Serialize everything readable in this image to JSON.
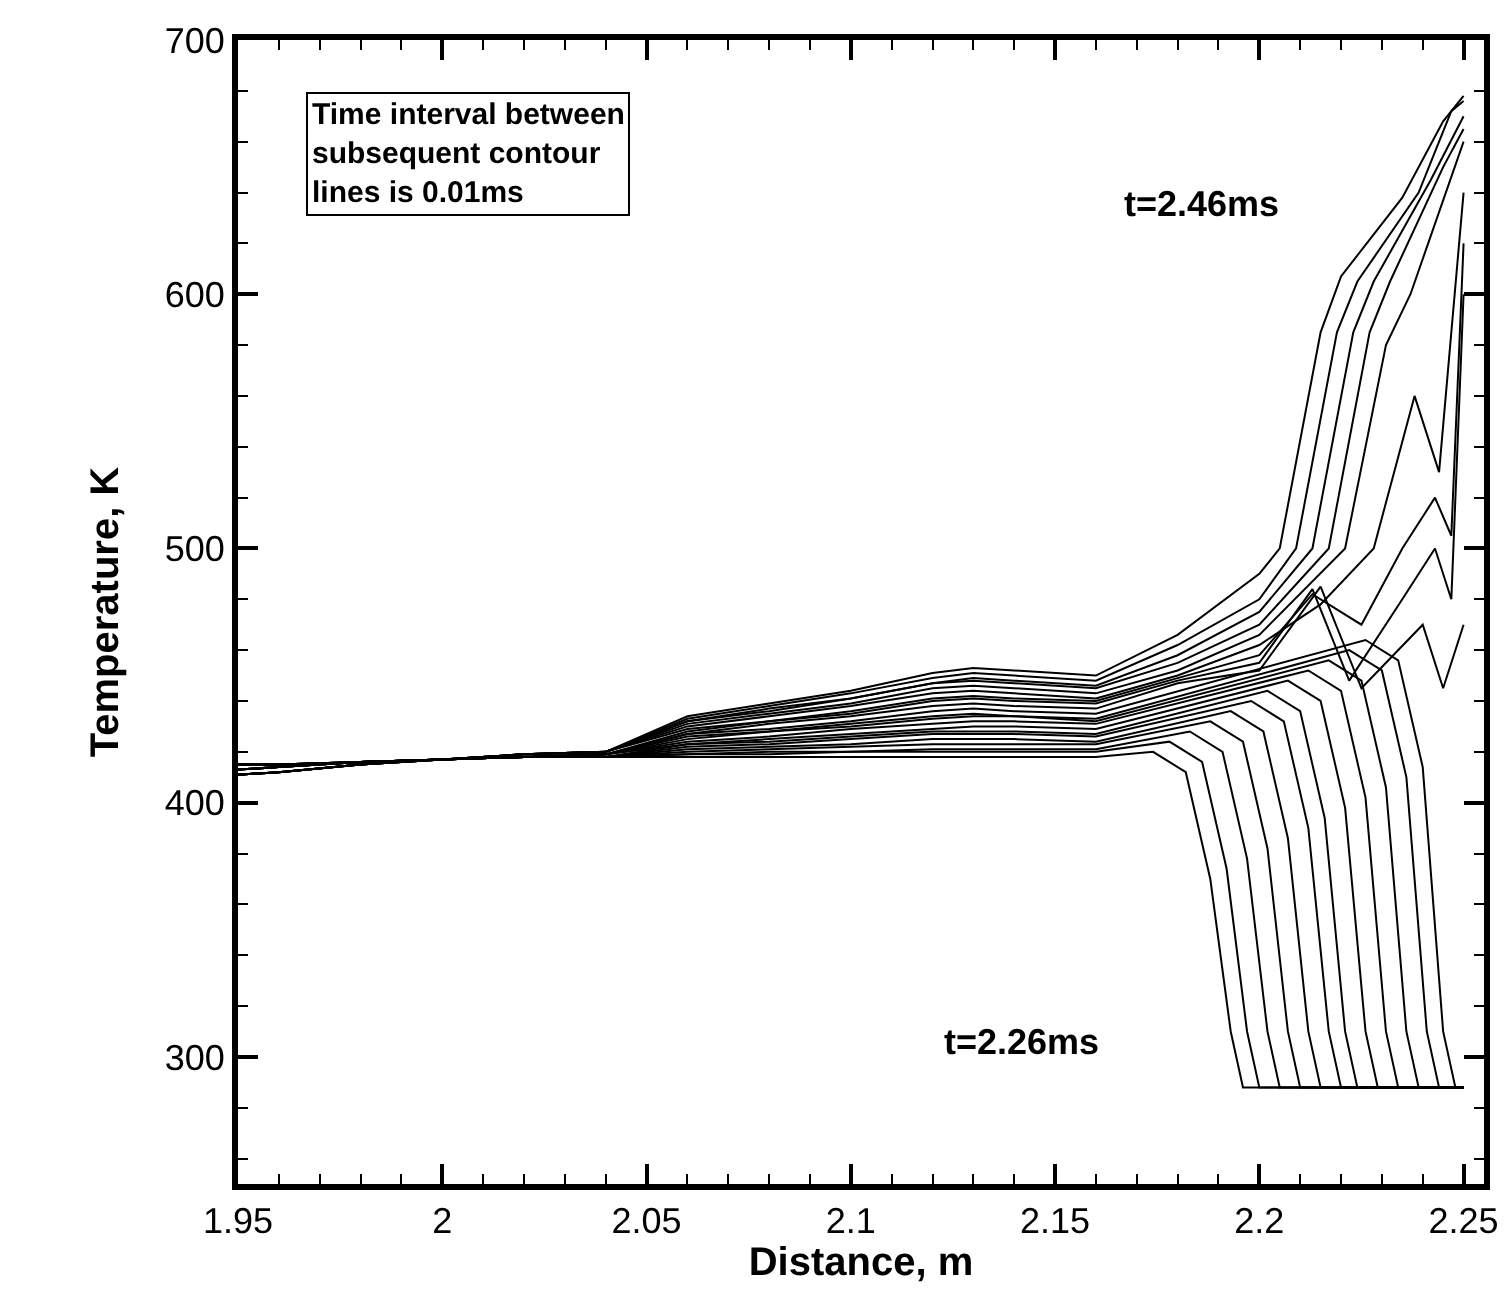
{
  "chart_data": {
    "type": "line",
    "xlabel": "Distance, m",
    "ylabel": "Temperature, K",
    "xlim": [
      1.95,
      2.255
    ],
    "ylim": [
      250,
      700
    ],
    "xticks": [
      {
        "value": 1.95,
        "label": "1.95"
      },
      {
        "value": 1.96,
        "label": null
      },
      {
        "value": 1.97,
        "label": null
      },
      {
        "value": 1.98,
        "label": null
      },
      {
        "value": 1.99,
        "label": null
      },
      {
        "value": 2,
        "label": "2"
      },
      {
        "value": 2.01,
        "label": null
      },
      {
        "value": 2.02,
        "label": null
      },
      {
        "value": 2.03,
        "label": null
      },
      {
        "value": 2.04,
        "label": null
      },
      {
        "value": 2.05,
        "label": "2.05"
      },
      {
        "value": 2.06,
        "label": null
      },
      {
        "value": 2.07,
        "label": null
      },
      {
        "value": 2.08,
        "label": null
      },
      {
        "value": 2.09,
        "label": null
      },
      {
        "value": 2.1,
        "label": "2.1"
      },
      {
        "value": 2.11,
        "label": null
      },
      {
        "value": 2.12,
        "label": null
      },
      {
        "value": 2.13,
        "label": null
      },
      {
        "value": 2.14,
        "label": null
      },
      {
        "value": 2.15,
        "label": "2.15"
      },
      {
        "value": 2.16,
        "label": null
      },
      {
        "value": 2.17,
        "label": null
      },
      {
        "value": 2.18,
        "label": null
      },
      {
        "value": 2.19,
        "label": null
      },
      {
        "value": 2.2,
        "label": "2.2"
      },
      {
        "value": 2.21,
        "label": null
      },
      {
        "value": 2.22,
        "label": null
      },
      {
        "value": 2.23,
        "label": null
      },
      {
        "value": 2.24,
        "label": null
      },
      {
        "value": 2.25,
        "label": "2.25"
      }
    ],
    "yticks": [
      {
        "value": 260,
        "label": null
      },
      {
        "value": 280,
        "label": null
      },
      300,
      {
        "value": 320,
        "label": null
      },
      {
        "value": 340,
        "label": null
      },
      {
        "value": 360,
        "label": null
      },
      {
        "value": 380,
        "label": null
      },
      400,
      {
        "value": 420,
        "label": null
      },
      {
        "value": 440,
        "label": null
      },
      {
        "value": 460,
        "label": null
      },
      {
        "value": 480,
        "label": null
      },
      500,
      {
        "value": 520,
        "label": null
      },
      {
        "value": 540,
        "label": null
      },
      {
        "value": 560,
        "label": null
      },
      {
        "value": 580,
        "label": null
      },
      600,
      {
        "value": 620,
        "label": null
      },
      {
        "value": 640,
        "label": null
      },
      {
        "value": 660,
        "label": null
      },
      {
        "value": 680,
        "label": null
      },
      700
    ],
    "annotations": [
      "Time interval between subsequent contour lines is 0.01ms",
      "t=2.46ms",
      "t=2.26ms"
    ],
    "series": [
      {
        "color": "#000000",
        "x": [
          1.95,
          1.96,
          1.98,
          2.0,
          2.02,
          2.04,
          2.06,
          2.08,
          2.1,
          2.12,
          2.13,
          2.14,
          2.16,
          2.174,
          2.182,
          2.188,
          2.193,
          2.196,
          2.25
        ],
        "values": [
          415,
          415,
          416,
          417,
          418,
          418,
          418,
          418,
          418,
          418,
          418,
          418,
          418,
          420,
          412,
          370,
          310,
          288,
          288
        ]
      },
      {
        "color": "#000000",
        "x": [
          1.95,
          1.96,
          1.98,
          2.0,
          2.02,
          2.04,
          2.06,
          2.08,
          2.1,
          2.12,
          2.13,
          2.14,
          2.16,
          2.178,
          2.186,
          2.192,
          2.197,
          2.2,
          2.25
        ],
        "values": [
          415,
          415,
          416,
          417,
          418,
          418,
          419,
          419,
          420,
          420,
          420,
          420,
          420,
          424,
          416,
          374,
          310,
          288,
          288
        ]
      },
      {
        "color": "#000000",
        "x": [
          1.95,
          1.96,
          1.98,
          2.0,
          2.02,
          2.04,
          2.06,
          2.08,
          2.1,
          2.12,
          2.13,
          2.14,
          2.16,
          2.183,
          2.191,
          2.197,
          2.202,
          2.205,
          2.25
        ],
        "values": [
          415,
          415,
          416,
          417,
          418,
          418,
          419,
          420,
          420,
          421,
          421,
          421,
          421,
          428,
          420,
          378,
          310,
          288,
          288
        ]
      },
      {
        "color": "#000000",
        "x": [
          1.95,
          1.96,
          1.98,
          2.0,
          2.02,
          2.04,
          2.06,
          2.08,
          2.1,
          2.12,
          2.13,
          2.14,
          2.16,
          2.188,
          2.196,
          2.202,
          2.207,
          2.21,
          2.25
        ],
        "values": [
          415,
          415,
          416,
          417,
          418,
          418,
          420,
          421,
          422,
          423,
          423,
          423,
          423,
          432,
          424,
          382,
          310,
          288,
          288
        ]
      },
      {
        "color": "#000000",
        "x": [
          1.95,
          1.96,
          1.98,
          2.0,
          2.02,
          2.04,
          2.06,
          2.08,
          2.1,
          2.12,
          2.13,
          2.14,
          2.16,
          2.193,
          2.201,
          2.207,
          2.212,
          2.215,
          2.25
        ],
        "values": [
          415,
          415,
          416,
          417,
          418,
          418,
          421,
          422,
          423,
          425,
          425,
          425,
          424,
          436,
          428,
          386,
          310,
          288,
          288
        ]
      },
      {
        "color": "#000000",
        "x": [
          1.95,
          1.96,
          1.98,
          2.0,
          2.02,
          2.04,
          2.06,
          2.08,
          2.1,
          2.12,
          2.13,
          2.14,
          2.16,
          2.198,
          2.206,
          2.212,
          2.217,
          2.22,
          2.25
        ],
        "values": [
          415,
          415,
          416,
          417,
          418,
          418,
          422,
          423,
          425,
          427,
          427,
          427,
          426,
          440,
          432,
          390,
          310,
          288,
          288
        ]
      },
      {
        "color": "#000000",
        "x": [
          1.95,
          1.96,
          1.98,
          2.0,
          2.02,
          2.04,
          2.06,
          2.08,
          2.1,
          2.12,
          2.13,
          2.14,
          2.16,
          2.202,
          2.21,
          2.216,
          2.221,
          2.224,
          2.25
        ],
        "values": [
          415,
          415,
          416,
          417,
          418,
          418,
          423,
          424,
          426,
          428,
          428,
          428,
          427,
          444,
          436,
          394,
          310,
          288,
          288
        ]
      },
      {
        "color": "#000000",
        "x": [
          1.95,
          1.96,
          1.98,
          2.0,
          2.02,
          2.04,
          2.06,
          2.08,
          2.1,
          2.12,
          2.13,
          2.14,
          2.16,
          2.207,
          2.215,
          2.221,
          2.226,
          2.229,
          2.25
        ],
        "values": [
          413,
          414,
          416,
          417,
          418,
          419,
          423,
          425,
          427,
          429,
          430,
          430,
          429,
          448,
          440,
          398,
          310,
          288,
          288
        ]
      },
      {
        "color": "#000000",
        "x": [
          1.95,
          1.96,
          1.98,
          2.0,
          2.02,
          2.04,
          2.06,
          2.08,
          2.1,
          2.12,
          2.13,
          2.14,
          2.16,
          2.212,
          2.22,
          2.226,
          2.231,
          2.234,
          2.25
        ],
        "values": [
          413,
          414,
          416,
          417,
          418,
          419,
          424,
          426,
          429,
          431,
          432,
          432,
          431,
          452,
          444,
          402,
          310,
          288,
          288
        ]
      },
      {
        "color": "#000000",
        "x": [
          1.95,
          1.96,
          1.98,
          2.0,
          2.02,
          2.04,
          2.06,
          2.08,
          2.1,
          2.12,
          2.13,
          2.14,
          2.16,
          2.217,
          2.225,
          2.231,
          2.236,
          2.239,
          2.25
        ],
        "values": [
          413,
          414,
          416,
          417,
          418,
          419,
          425,
          428,
          430,
          433,
          434,
          434,
          432,
          456,
          448,
          406,
          310,
          288,
          288
        ]
      },
      {
        "color": "#000000",
        "x": [
          1.95,
          1.96,
          1.98,
          2.0,
          2.02,
          2.04,
          2.06,
          2.08,
          2.1,
          2.12,
          2.13,
          2.14,
          2.16,
          2.222,
          2.23,
          2.236,
          2.241,
          2.244,
          2.25
        ],
        "values": [
          413,
          414,
          416,
          417,
          418,
          419,
          426,
          428,
          431,
          434,
          435,
          434,
          433,
          460,
          452,
          410,
          310,
          288,
          288
        ]
      },
      {
        "color": "#000000",
        "x": [
          1.95,
          1.96,
          1.98,
          2.0,
          2.02,
          2.04,
          2.06,
          2.08,
          2.1,
          2.12,
          2.13,
          2.14,
          2.16,
          2.226,
          2.234,
          2.24,
          2.245,
          2.248,
          2.25
        ],
        "values": [
          413,
          414,
          416,
          417,
          418,
          419,
          427,
          429,
          432,
          436,
          437,
          436,
          435,
          464,
          456,
          414,
          310,
          288,
          288
        ]
      },
      {
        "color": "#000000",
        "x": [
          1.95,
          1.96,
          1.98,
          2.0,
          2.02,
          2.04,
          2.06,
          2.08,
          2.1,
          2.12,
          2.13,
          2.14,
          2.16,
          2.18,
          2.2,
          2.215,
          2.225,
          2.24,
          2.245,
          2.25
        ],
        "values": [
          413,
          414,
          416,
          417,
          418,
          419,
          427,
          431,
          434,
          438,
          439,
          438,
          437,
          447,
          452,
          485,
          445,
          470,
          445,
          470
        ]
      },
      {
        "color": "#000000",
        "x": [
          1.95,
          1.96,
          1.98,
          2.0,
          2.02,
          2.04,
          2.06,
          2.08,
          2.1,
          2.12,
          2.13,
          2.14,
          2.16,
          2.18,
          2.2,
          2.213,
          2.222,
          2.235,
          2.243,
          2.247,
          2.25
        ],
        "values": [
          413,
          414,
          416,
          417,
          418,
          419,
          428,
          432,
          435,
          440,
          441,
          440,
          439,
          448,
          455,
          484,
          448,
          480,
          500,
          480,
          600
        ]
      },
      {
        "color": "#000000",
        "x": [
          1.95,
          1.96,
          1.98,
          2.0,
          2.02,
          2.04,
          2.06,
          2.08,
          2.1,
          2.12,
          2.13,
          2.14,
          2.16,
          2.18,
          2.2,
          2.213,
          2.225,
          2.235,
          2.243,
          2.247,
          2.25
        ],
        "values": [
          411,
          412,
          415,
          417,
          419,
          420,
          429,
          432,
          436,
          441,
          442,
          441,
          440,
          449,
          458,
          482,
          470,
          500,
          520,
          505,
          620
        ]
      },
      {
        "color": "#000000",
        "x": [
          1.95,
          1.96,
          1.98,
          2.0,
          2.02,
          2.04,
          2.06,
          2.08,
          2.1,
          2.12,
          2.13,
          2.14,
          2.16,
          2.18,
          2.2,
          2.215,
          2.228,
          2.238,
          2.244,
          2.25
        ],
        "values": [
          411,
          412,
          415,
          417,
          419,
          420,
          430,
          434,
          438,
          443,
          444,
          443,
          441,
          450,
          462,
          478,
          500,
          560,
          530,
          640
        ]
      },
      {
        "color": "#000000",
        "x": [
          1.95,
          1.96,
          1.98,
          2.0,
          2.02,
          2.04,
          2.06,
          2.08,
          2.1,
          2.12,
          2.13,
          2.14,
          2.16,
          2.18,
          2.2,
          2.221,
          2.231,
          2.237,
          2.25
        ],
        "values": [
          411,
          412,
          415,
          417,
          419,
          420,
          431,
          435,
          439,
          445,
          446,
          445,
          443,
          452,
          466,
          500,
          580,
          600,
          660
        ]
      },
      {
        "color": "#000000",
        "x": [
          1.95,
          1.96,
          1.98,
          2.0,
          2.02,
          2.04,
          2.06,
          2.08,
          2.1,
          2.12,
          2.13,
          2.14,
          2.16,
          2.18,
          2.2,
          2.217,
          2.227,
          2.232,
          2.245,
          2.25
        ],
        "values": [
          411,
          412,
          415,
          417,
          419,
          420,
          432,
          436,
          441,
          447,
          448,
          447,
          445,
          455,
          470,
          500,
          585,
          605,
          650,
          665
        ]
      },
      {
        "color": "#000000",
        "x": [
          1.95,
          1.96,
          1.98,
          2.0,
          2.02,
          2.04,
          2.06,
          2.08,
          2.1,
          2.12,
          2.13,
          2.14,
          2.16,
          2.18,
          2.2,
          2.213,
          2.223,
          2.228,
          2.242,
          2.25
        ],
        "values": [
          411,
          412,
          415,
          417,
          419,
          420,
          432,
          437,
          441,
          447,
          449,
          448,
          446,
          458,
          475,
          500,
          585,
          605,
          645,
          670
        ]
      },
      {
        "color": "#000000",
        "x": [
          1.95,
          1.96,
          1.98,
          2.0,
          2.02,
          2.04,
          2.06,
          2.08,
          2.1,
          2.12,
          2.13,
          2.14,
          2.16,
          2.18,
          2.2,
          2.209,
          2.219,
          2.224,
          2.239,
          2.247,
          2.25
        ],
        "values": [
          411,
          412,
          415,
          417,
          419,
          420,
          433,
          438,
          443,
          449,
          451,
          450,
          448,
          462,
          480,
          500,
          585,
          605,
          640,
          672,
          676
        ]
      },
      {
        "color": "#000000",
        "x": [
          1.95,
          1.96,
          1.98,
          2.0,
          2.02,
          2.04,
          2.06,
          2.08,
          2.1,
          2.12,
          2.13,
          2.14,
          2.16,
          2.18,
          2.2,
          2.205,
          2.215,
          2.22,
          2.235,
          2.245,
          2.25
        ],
        "values": [
          411,
          412,
          415,
          417,
          419,
          420,
          434,
          439,
          444,
          451,
          453,
          452,
          450,
          466,
          490,
          500,
          585,
          607,
          638,
          668,
          678
        ]
      }
    ]
  }
}
